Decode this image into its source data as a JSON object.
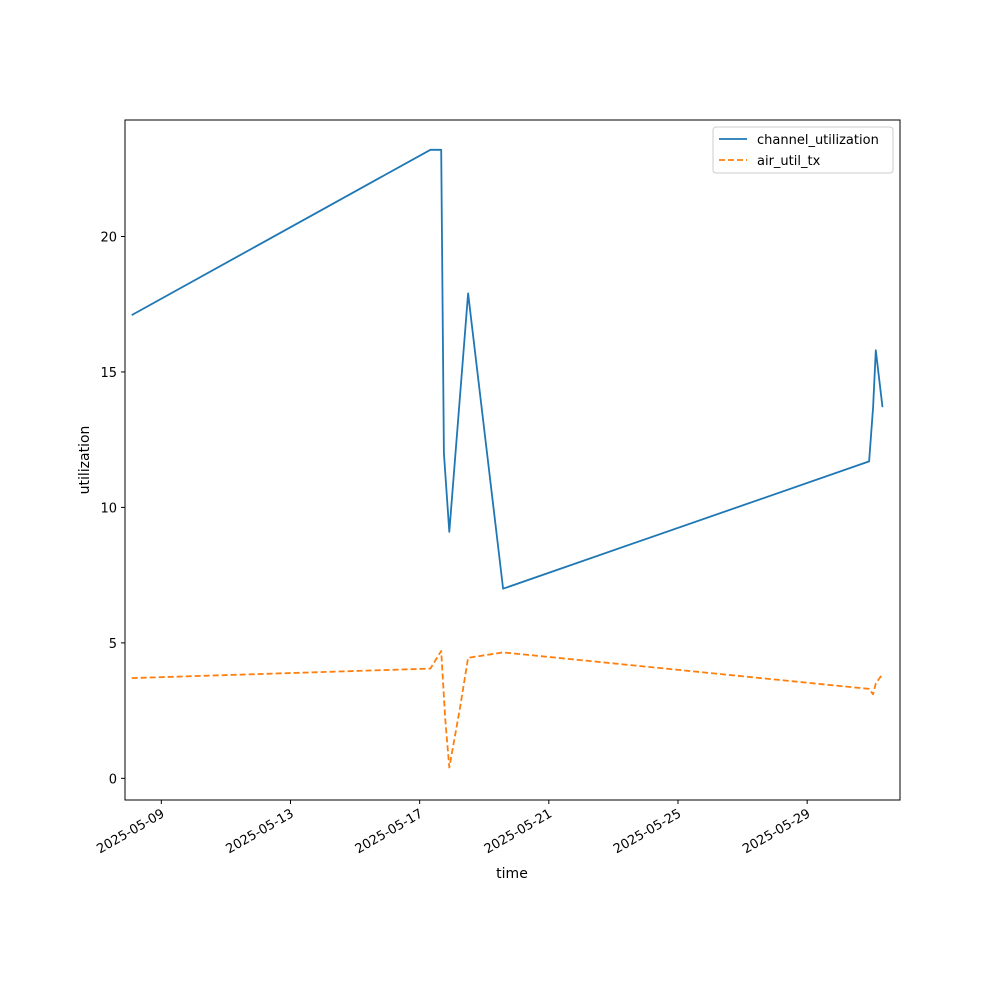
{
  "chart_data": {
    "type": "line",
    "xlabel": "time",
    "ylabel": "utilization",
    "xlim": [
      "2025-05-07T21:00",
      "2025-05-31T21:00"
    ],
    "ylim": [
      -0.8,
      24.3
    ],
    "grid": false,
    "legend_position": "top-right",
    "x_ticks": [
      "2025-05-09",
      "2025-05-13",
      "2025-05-17",
      "2025-05-21",
      "2025-05-25",
      "2025-05-29"
    ],
    "y_ticks": [
      0,
      5,
      10,
      15,
      20
    ],
    "series": [
      {
        "name": "channel_utilization",
        "color": "#1f77b4",
        "dash": "solid",
        "points": [
          [
            "2025-05-08T02:00",
            17.1
          ],
          [
            "2025-05-17T08:00",
            23.2
          ],
          [
            "2025-05-17T16:00",
            23.2
          ],
          [
            "2025-05-17T18:00",
            12.0
          ],
          [
            "2025-05-17T22:00",
            9.1
          ],
          [
            "2025-05-18T12:00",
            17.9
          ],
          [
            "2025-05-19T14:00",
            7.0
          ],
          [
            "2025-05-30T22:00",
            11.7
          ],
          [
            "2025-05-31T01:00",
            13.7
          ],
          [
            "2025-05-31T03:00",
            15.8
          ],
          [
            "2025-05-31T08:00",
            13.7
          ]
        ]
      },
      {
        "name": "air_util_tx",
        "color": "#ff7f0e",
        "dash": "dashed",
        "points": [
          [
            "2025-05-08T02:00",
            3.7
          ],
          [
            "2025-05-17T08:00",
            4.05
          ],
          [
            "2025-05-17T16:00",
            4.7
          ],
          [
            "2025-05-17T19:00",
            2.2
          ],
          [
            "2025-05-17T22:00",
            0.4
          ],
          [
            "2025-05-18T06:00",
            2.6
          ],
          [
            "2025-05-18T12:00",
            4.45
          ],
          [
            "2025-05-19T14:00",
            4.65
          ],
          [
            "2025-05-30T22:00",
            3.3
          ],
          [
            "2025-05-31T01:00",
            3.1
          ],
          [
            "2025-05-31T03:00",
            3.5
          ],
          [
            "2025-05-31T08:00",
            3.85
          ]
        ]
      }
    ]
  }
}
